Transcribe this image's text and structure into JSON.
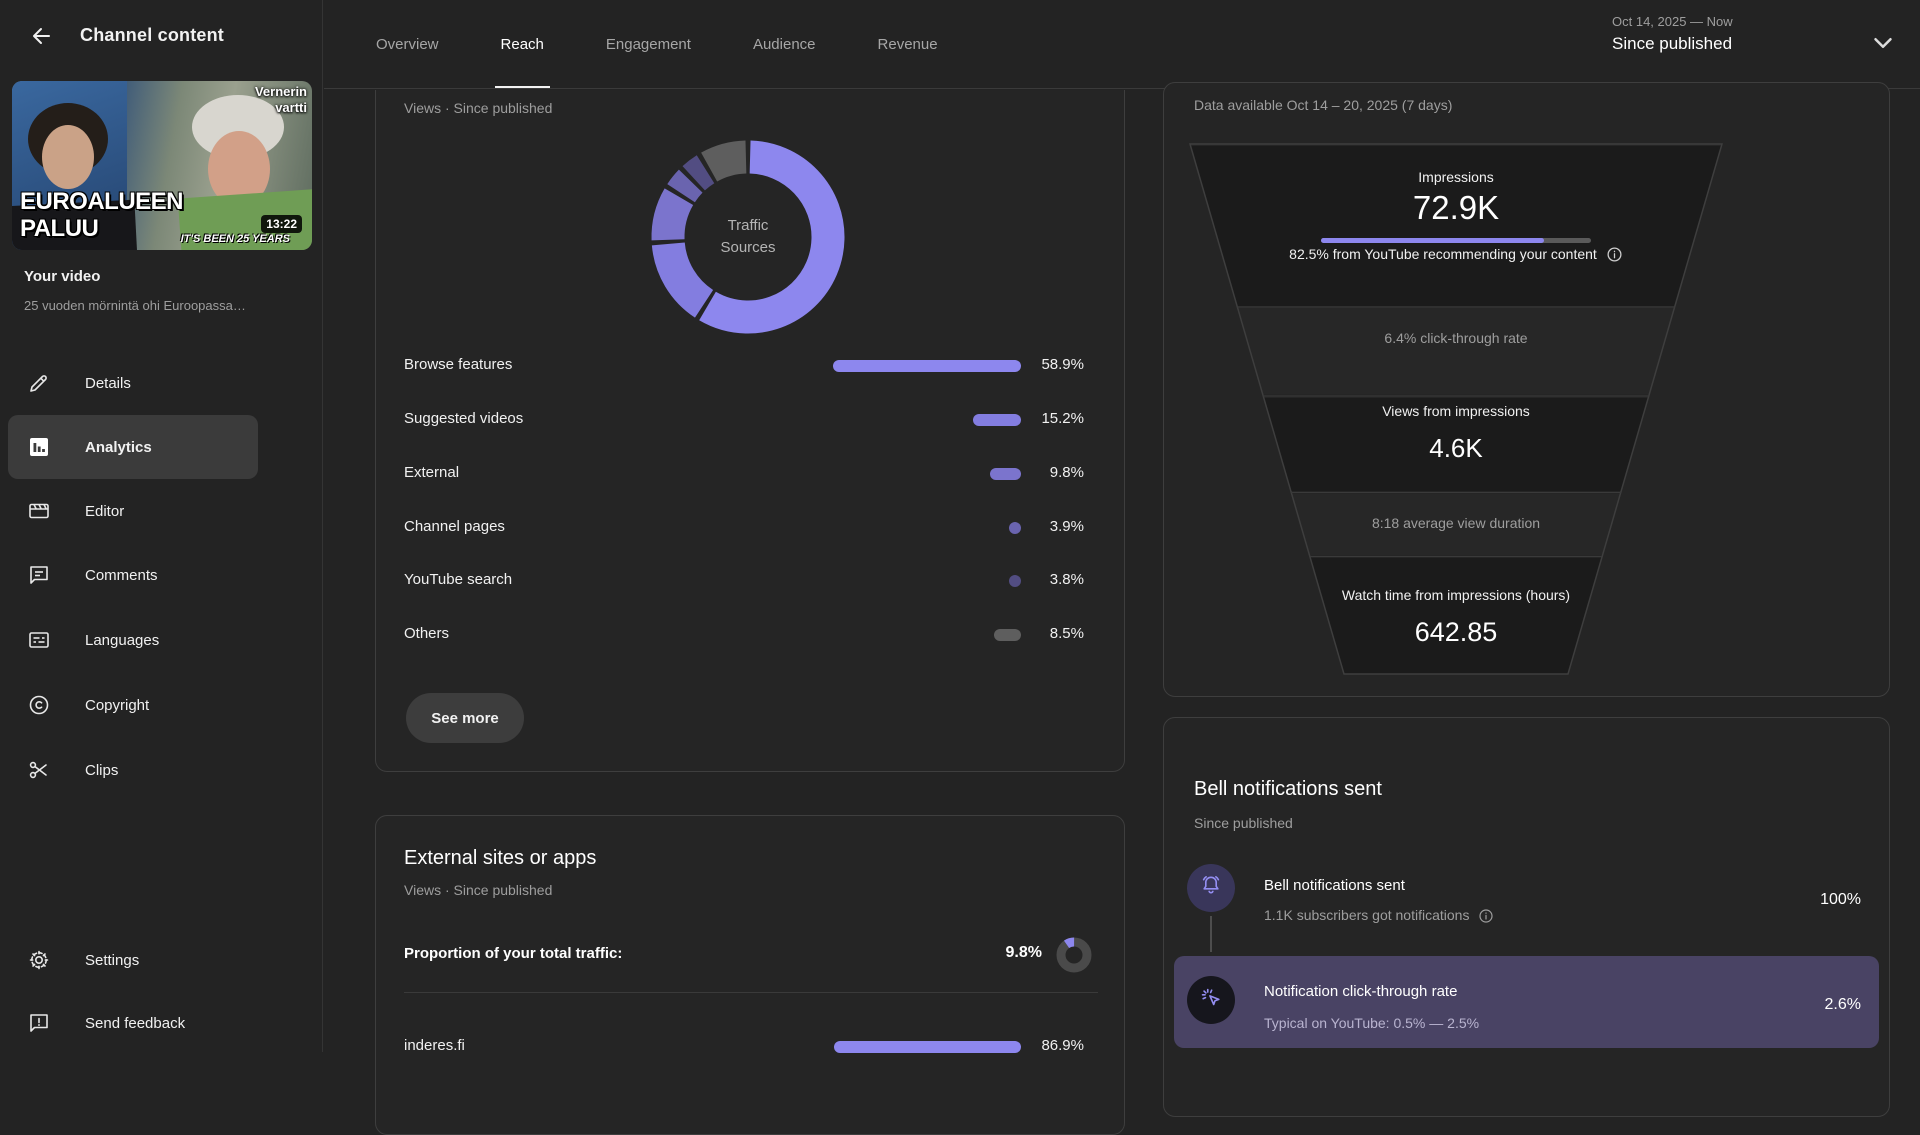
{
  "colors": {
    "accent": "#8d87ee",
    "donut": [
      "#8d87ee",
      "#837de0",
      "#7b74cd",
      "#6a64af",
      "#524d82",
      "#5e5e5e"
    ],
    "bar_remainder": "#5a5a5a",
    "highlight_row_bg": "#494364"
  },
  "header": {
    "back_label": "Channel content",
    "tabs": [
      {
        "label": "Overview",
        "active": false
      },
      {
        "label": "Reach",
        "active": true
      },
      {
        "label": "Engagement",
        "active": false
      },
      {
        "label": "Audience",
        "active": false
      },
      {
        "label": "Revenue",
        "active": false
      }
    ],
    "date_range": {
      "line1": "Oct 14, 2025 — Now",
      "line2": "Since published"
    }
  },
  "sidebar": {
    "video_label": "Your video",
    "video_title": "25 vuoden mörnintä ohi Euroopassa…",
    "thumbnail": {
      "duration": "13:22",
      "overlay_topright_line1": "Vernerin",
      "overlay_topright_line2": "vartti",
      "overlay_title_line1": "EUROALUEEN",
      "overlay_title_line2": "PALUU",
      "overlay_caption": "IT'S BEEN 25 YEARS"
    },
    "items": [
      {
        "label": "Details",
        "icon": "edit",
        "selected": false
      },
      {
        "label": "Analytics",
        "icon": "analytics",
        "selected": true
      },
      {
        "label": "Editor",
        "icon": "editor",
        "selected": false
      },
      {
        "label": "Comments",
        "icon": "comments",
        "selected": false
      },
      {
        "label": "Languages",
        "icon": "languages",
        "selected": false
      },
      {
        "label": "Copyright",
        "icon": "copyright",
        "selected": false
      },
      {
        "label": "Clips",
        "icon": "clips",
        "selected": false
      }
    ],
    "footer_items": [
      {
        "label": "Settings",
        "icon": "settings"
      },
      {
        "label": "Send feedback",
        "icon": "feedback"
      }
    ]
  },
  "traffic_card": {
    "subtitle": "Views · Since published",
    "see_more_label": "See more",
    "chart_data": {
      "type": "donut",
      "title": "Traffic Sources",
      "center_label_line1": "Traffic",
      "center_label_line2": "Sources",
      "labels": [
        "Browse features",
        "Suggested videos",
        "External",
        "Channel pages",
        "YouTube search",
        "Others"
      ],
      "values": [
        58.9,
        15.2,
        9.8,
        3.9,
        3.8,
        8.5
      ],
      "value_displays": [
        "58.9%",
        "15.2%",
        "9.8%",
        "3.9%",
        "3.8%",
        "8.5%"
      ],
      "colors": [
        "#8d87ee",
        "#837de0",
        "#7b74cd",
        "#6a64af",
        "#524d82",
        "#5e5e5e"
      ]
    }
  },
  "external_card": {
    "title": "External sites or apps",
    "subtitle": "Views · Since published",
    "proportion_label": "Proportion of your total traffic:",
    "proportion_display": "9.8%",
    "proportion_pct": 9.8,
    "chart_data": {
      "type": "bar",
      "categories": [
        "inderes.fi"
      ],
      "values": [
        86.9
      ],
      "value_displays": [
        "86.9%"
      ]
    }
  },
  "funnel_card": {
    "availability": "Data available Oct 14 – 20, 2025 (7 days)",
    "impressions": {
      "label": "Impressions",
      "value": "72.9K"
    },
    "recommend": {
      "pct": 82.5,
      "text": "82.5% from YouTube recommending your content"
    },
    "ctr_text": "6.4% click-through rate",
    "views": {
      "label": "Views from impressions",
      "value": "4.6K"
    },
    "avd_text": "8:18 average view duration",
    "watch": {
      "label": "Watch time from impressions (hours)",
      "value": "642.85"
    }
  },
  "bell_card": {
    "title": "Bell notifications sent",
    "subtitle": "Since published",
    "rows": [
      {
        "title": "Bell notifications sent",
        "subtitle": "1.1K subscribers got notifications",
        "value": "100%",
        "icon": "bell"
      },
      {
        "title": "Notification click-through rate",
        "subtitle": "Typical on YouTube: 0.5% — 2.5%",
        "value": "2.6%",
        "icon": "notification-click"
      }
    ]
  }
}
